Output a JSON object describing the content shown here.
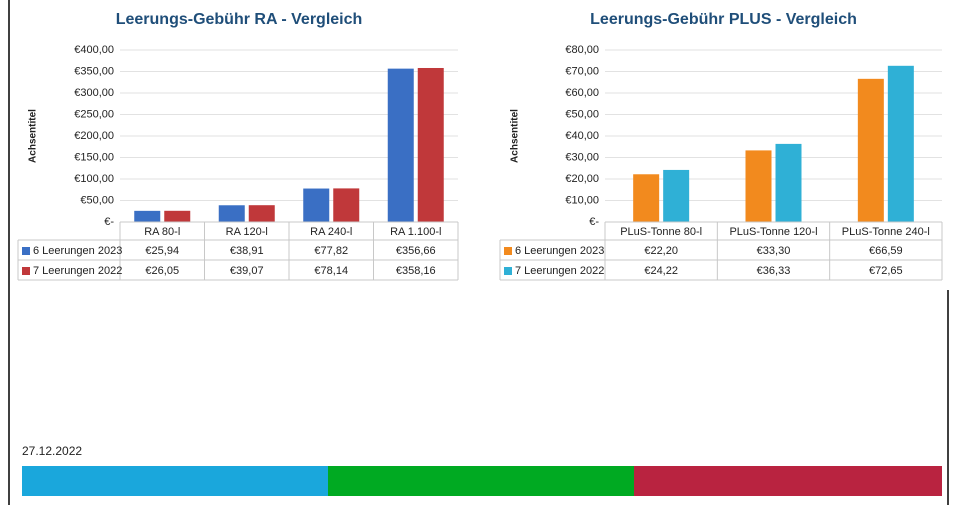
{
  "chart_data": [
    {
      "type": "bar",
      "title": "Leerungs-Gebühr RA - Vergleich",
      "y_label": "Achsentitel",
      "categories": [
        "RA 80-l",
        "RA 120-l",
        "RA 240-l",
        "RA 1.100-l"
      ],
      "series": [
        {
          "name": "6 Leerungen 2023",
          "color": "#3a6fc4",
          "values": [
            25.94,
            38.91,
            77.82,
            356.66
          ],
          "value_labels": [
            "€25,94",
            "€38,91",
            "€77,82",
            "€356,66"
          ]
        },
        {
          "name": "7 Leerungen 2022",
          "color": "#c0383a",
          "values": [
            26.05,
            39.07,
            78.14,
            358.16
          ],
          "value_labels": [
            "€26,05",
            "€39,07",
            "€78,14",
            "€358,16"
          ]
        }
      ],
      "ylim": [
        0,
        400
      ],
      "yticks": [
        {
          "value": 0,
          "label": "€-"
        },
        {
          "value": 50,
          "label": "€50,00"
        },
        {
          "value": 100,
          "label": "€100,00"
        },
        {
          "value": 150,
          "label": "€150,00"
        },
        {
          "value": 200,
          "label": "€200,00"
        },
        {
          "value": 250,
          "label": "€250,00"
        },
        {
          "value": 300,
          "label": "€300,00"
        },
        {
          "value": 350,
          "label": "€350,00"
        },
        {
          "value": 400,
          "label": "€400,00"
        }
      ],
      "grid": true
    },
    {
      "type": "bar",
      "title": "Leerungs-Gebühr PLUS - Vergleich",
      "y_label": "Achsentitel",
      "categories": [
        "PLuS-Tonne 80-l",
        "PLuS-Tonne 120-l",
        "PLuS-Tonne 240-l"
      ],
      "series": [
        {
          "name": "6 Leerungen 2023",
          "color": "#f28a1e",
          "values": [
            22.2,
            33.3,
            66.59
          ],
          "value_labels": [
            "€22,20",
            "€33,30",
            "€66,59"
          ]
        },
        {
          "name": "7 Leerungen 2022",
          "color": "#2fb0d6",
          "values": [
            24.22,
            36.33,
            72.65
          ],
          "value_labels": [
            "€24,22",
            "€36,33",
            "€72,65"
          ]
        }
      ],
      "ylim": [
        0,
        80
      ],
      "yticks": [
        {
          "value": 0,
          "label": "€-"
        },
        {
          "value": 10,
          "label": "€10,00"
        },
        {
          "value": 20,
          "label": "€20,00"
        },
        {
          "value": 30,
          "label": "€30,00"
        },
        {
          "value": 40,
          "label": "€40,00"
        },
        {
          "value": 50,
          "label": "€50,00"
        },
        {
          "value": 60,
          "label": "€60,00"
        },
        {
          "value": 70,
          "label": "€70,00"
        },
        {
          "value": 80,
          "label": "€80,00"
        }
      ],
      "grid": true
    }
  ],
  "footer": {
    "date": "27.12.2022"
  }
}
